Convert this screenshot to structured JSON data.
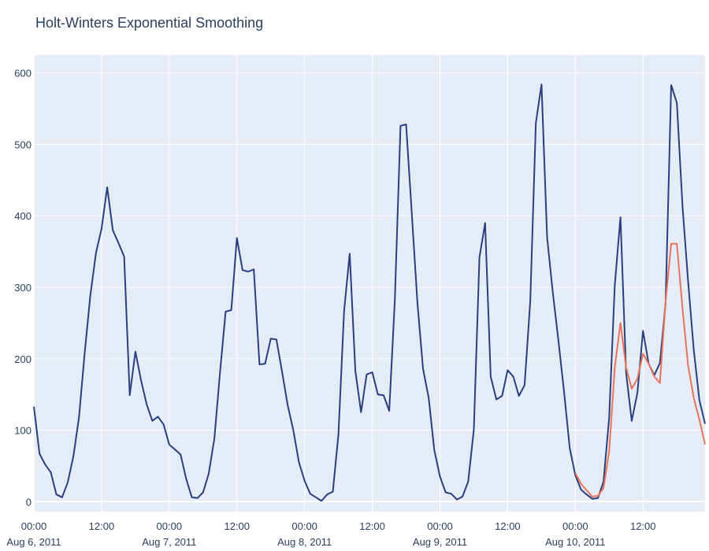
{
  "chart_data": {
    "type": "line",
    "title": "Holt-Winters Exponential Smoothing",
    "xlabel": "",
    "ylabel": "",
    "x_start": "2011-08-06 00:00",
    "x_step_hours": 1,
    "xlim": [
      "2011-08-06 00:00",
      "2011-08-10 23:00"
    ],
    "ylim": [
      -14,
      625
    ],
    "yticks": [
      0,
      100,
      200,
      300,
      400,
      500,
      600
    ],
    "xticks": [
      {
        "at": "2011-08-06 00:00",
        "time": "00:00",
        "date": "Aug 6, 2011"
      },
      {
        "at": "2011-08-06 12:00",
        "time": "12:00",
        "date": ""
      },
      {
        "at": "2011-08-07 00:00",
        "time": "00:00",
        "date": "Aug 7, 2011"
      },
      {
        "at": "2011-08-07 12:00",
        "time": "12:00",
        "date": ""
      },
      {
        "at": "2011-08-08 00:00",
        "time": "00:00",
        "date": "Aug 8, 2011"
      },
      {
        "at": "2011-08-08 12:00",
        "time": "12:00",
        "date": ""
      },
      {
        "at": "2011-08-09 00:00",
        "time": "00:00",
        "date": "Aug 9, 2011"
      },
      {
        "at": "2011-08-09 12:00",
        "time": "12:00",
        "date": ""
      },
      {
        "at": "2011-08-10 00:00",
        "time": "00:00",
        "date": "Aug 10, 2011"
      },
      {
        "at": "2011-08-10 12:00",
        "time": "12:00",
        "date": ""
      }
    ],
    "grid": true,
    "legend": "none",
    "series": [
      {
        "color": "#2a3f7e",
        "x_start": "2011-08-06 00:00",
        "values": [
          133,
          67,
          52,
          41,
          10,
          6,
          27,
          63,
          118,
          207,
          288,
          348,
          382,
          440,
          380,
          362,
          343,
          149,
          210,
          170,
          136,
          113,
          119,
          108,
          80,
          73,
          66,
          32,
          6,
          5,
          13,
          39,
          88,
          181,
          266,
          268,
          369,
          324,
          322,
          325,
          192,
          193,
          228,
          227,
          182,
          135,
          100,
          55,
          29,
          11,
          6,
          1,
          10,
          14,
          94,
          267,
          347,
          183,
          125,
          178,
          181,
          150,
          149,
          127,
          282,
          526,
          528,
          404,
          278,
          186,
          145,
          72,
          35,
          13,
          11,
          3,
          7,
          28,
          101,
          342,
          390,
          175,
          143,
          148,
          184,
          175,
          148,
          163,
          280,
          530,
          584,
          370,
          293,
          226,
          154,
          75,
          37,
          17,
          10,
          4,
          5,
          28,
          118,
          303,
          398,
          180,
          113,
          152,
          239,
          193,
          177,
          194,
          278,
          583,
          558,
          413,
          308,
          212,
          142,
          109
        ]
      },
      {
        "color": "#e8735c",
        "x_start": "2011-08-10 00:00",
        "values": [
          40,
          25,
          16,
          7,
          8,
          19,
          71,
          188,
          250,
          188,
          158,
          172,
          207,
          193,
          175,
          166,
          280,
          361,
          361,
          270,
          190,
          145,
          115,
          80
        ]
      }
    ]
  }
}
